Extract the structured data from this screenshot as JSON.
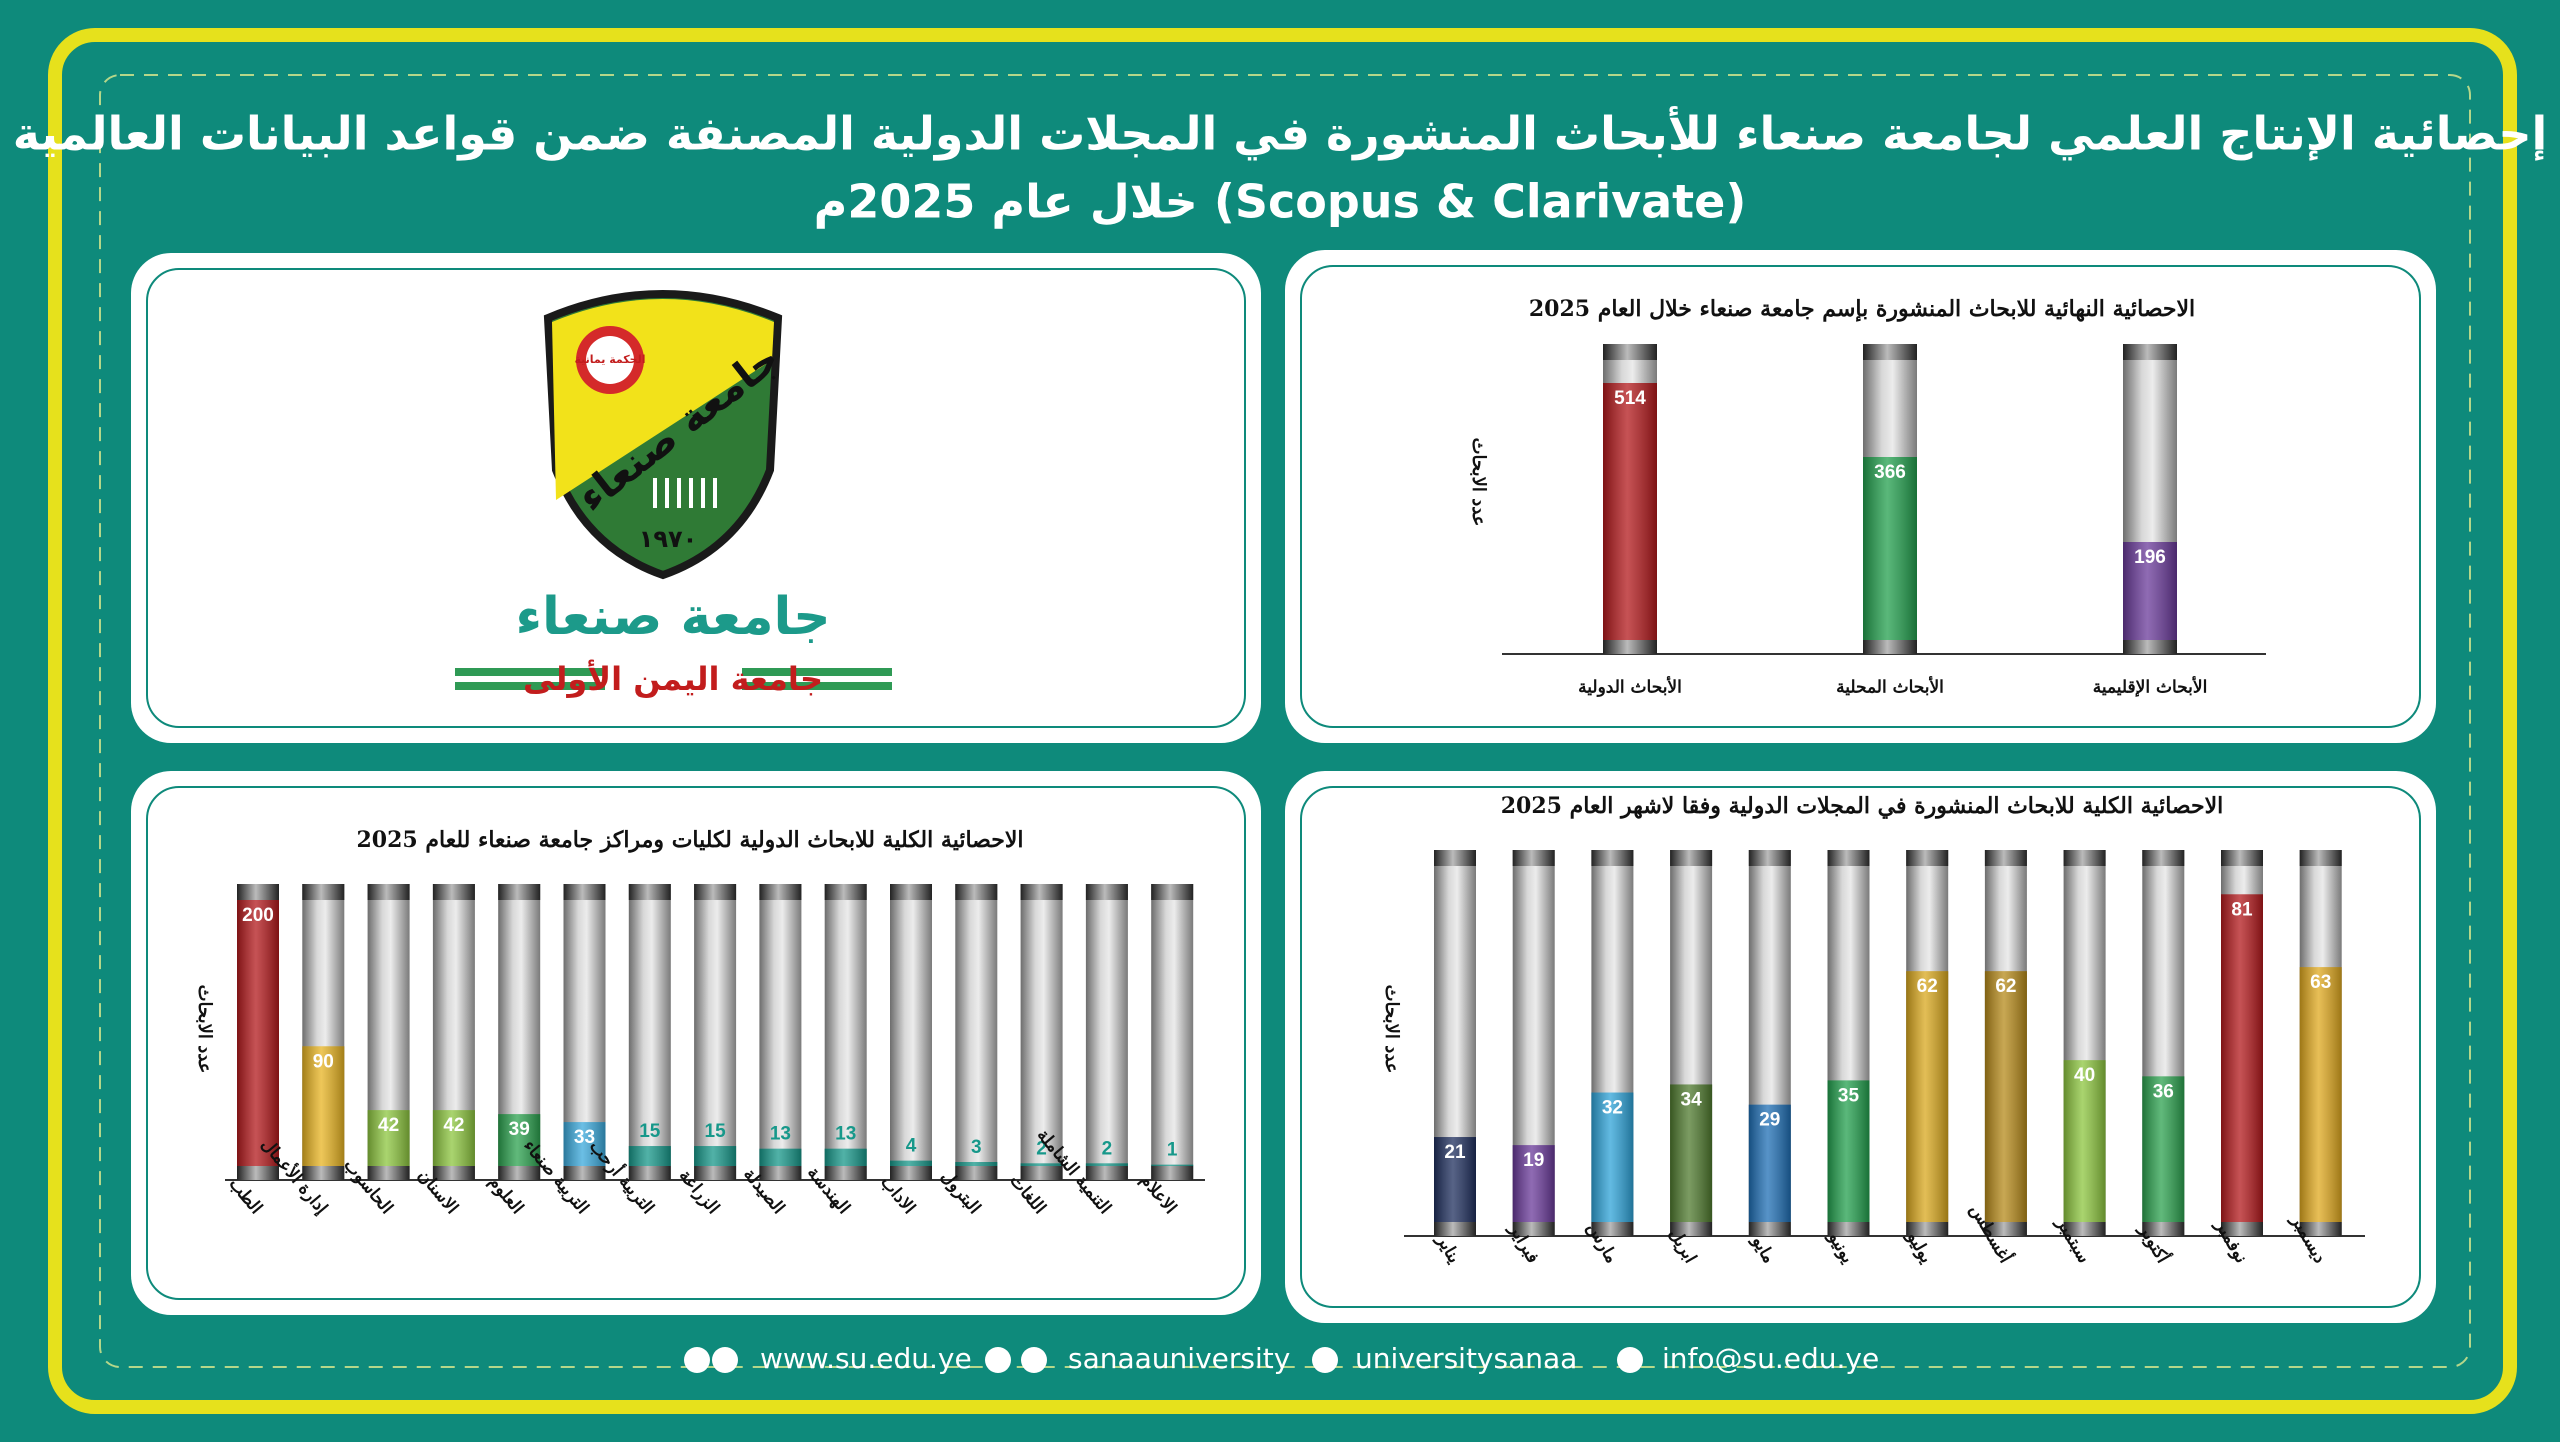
{
  "header": {
    "line1": "إحصائية الإنتاج العلمي لجامعة صنعاء للأبحاث المنشورة في المجلات الدولية المصنفة ضمن قواعد البيانات العالمية",
    "line2": "(Scopus & Clarivate) خلال عام 2025م"
  },
  "logo": {
    "motto": "الحكمة يمانية",
    "emblem_name": "جامعة صنعاء",
    "year": "١٩٧٠",
    "name": "جامعة صنعاء",
    "slogan": "جامعة اليمن الأولى"
  },
  "chart_data": [
    {
      "type": "bar",
      "title": "الاحصائية النهائية للابحاث المنشورة بإسم جامعة صنعاء خلال العام 2025",
      "y_label": "عدد الابحاث",
      "categories": [
        "الأبحاث الدولية",
        "الأبحاث المحلية",
        "الأبحاث الإقليمية"
      ],
      "values": [
        514,
        366,
        196
      ],
      "colors": [
        "#b3191c",
        "#23a04e",
        "#6a3a9a"
      ],
      "ylim": [
        0,
        560
      ]
    },
    {
      "type": "bar",
      "title": "الاحصائية الكلية للابحاث الدولية لكليات ومراكز جامعة صنعاء للعام 2025",
      "y_label": "عدد الابحاث",
      "categories": [
        "الطب",
        "إدارة الأعمال",
        "الحاسوب",
        "الاسنان",
        "العلوم",
        "التربية صنعاء",
        "التربية أرحب",
        "الزراعة",
        "الصيدلة",
        "الهندسة",
        "الاداب",
        "البترول",
        "اللغات",
        "التنمية الشاملة",
        "الاعلام"
      ],
      "values": [
        200,
        90,
        42,
        42,
        39,
        33,
        15,
        15,
        13,
        13,
        4,
        3,
        2,
        2,
        1
      ],
      "colors": [
        "#b3191c",
        "#e8b422",
        "#8dc63f",
        "#8dc63f",
        "#2ca24f",
        "#3aa9dc",
        "#17988a",
        "#17988a",
        "#17988a",
        "#17988a",
        "#17988a",
        "#17988a",
        "#17988a",
        "#17988a",
        "#17988a"
      ],
      "ylim": [
        0,
        200
      ]
    },
    {
      "type": "bar",
      "title": "الاحصائية الكلية للابحاث المنشورة في المجلات الدولية وفقا لاشهر العام 2025",
      "y_label": "عدد الابحاث",
      "categories": [
        "يناير",
        "فبراير",
        "مارس",
        "ابريل",
        "مايو",
        "يونيو",
        "يوليو",
        "أغسطس",
        "سبتمبر",
        "أكتوبر",
        "نوفمبر",
        "ديسمبر"
      ],
      "values": [
        21,
        19,
        32,
        34,
        29,
        35,
        62,
        62,
        40,
        36,
        81,
        63
      ],
      "colors": [
        "#1f2f5e",
        "#6a3a9a",
        "#2ea3d8",
        "#4f7a2e",
        "#1f6fb5",
        "#23a04e",
        "#d9a81e",
        "#b68a1a",
        "#8dc63f",
        "#2ca24f",
        "#b3191c",
        "#e0a91f"
      ],
      "ylim": [
        0,
        88
      ]
    }
  ],
  "footer": {
    "website": "www.su.edu.ye",
    "social1": "sanaauniversity",
    "social2": "universitysanaa",
    "email": "info@su.edu.ye"
  }
}
